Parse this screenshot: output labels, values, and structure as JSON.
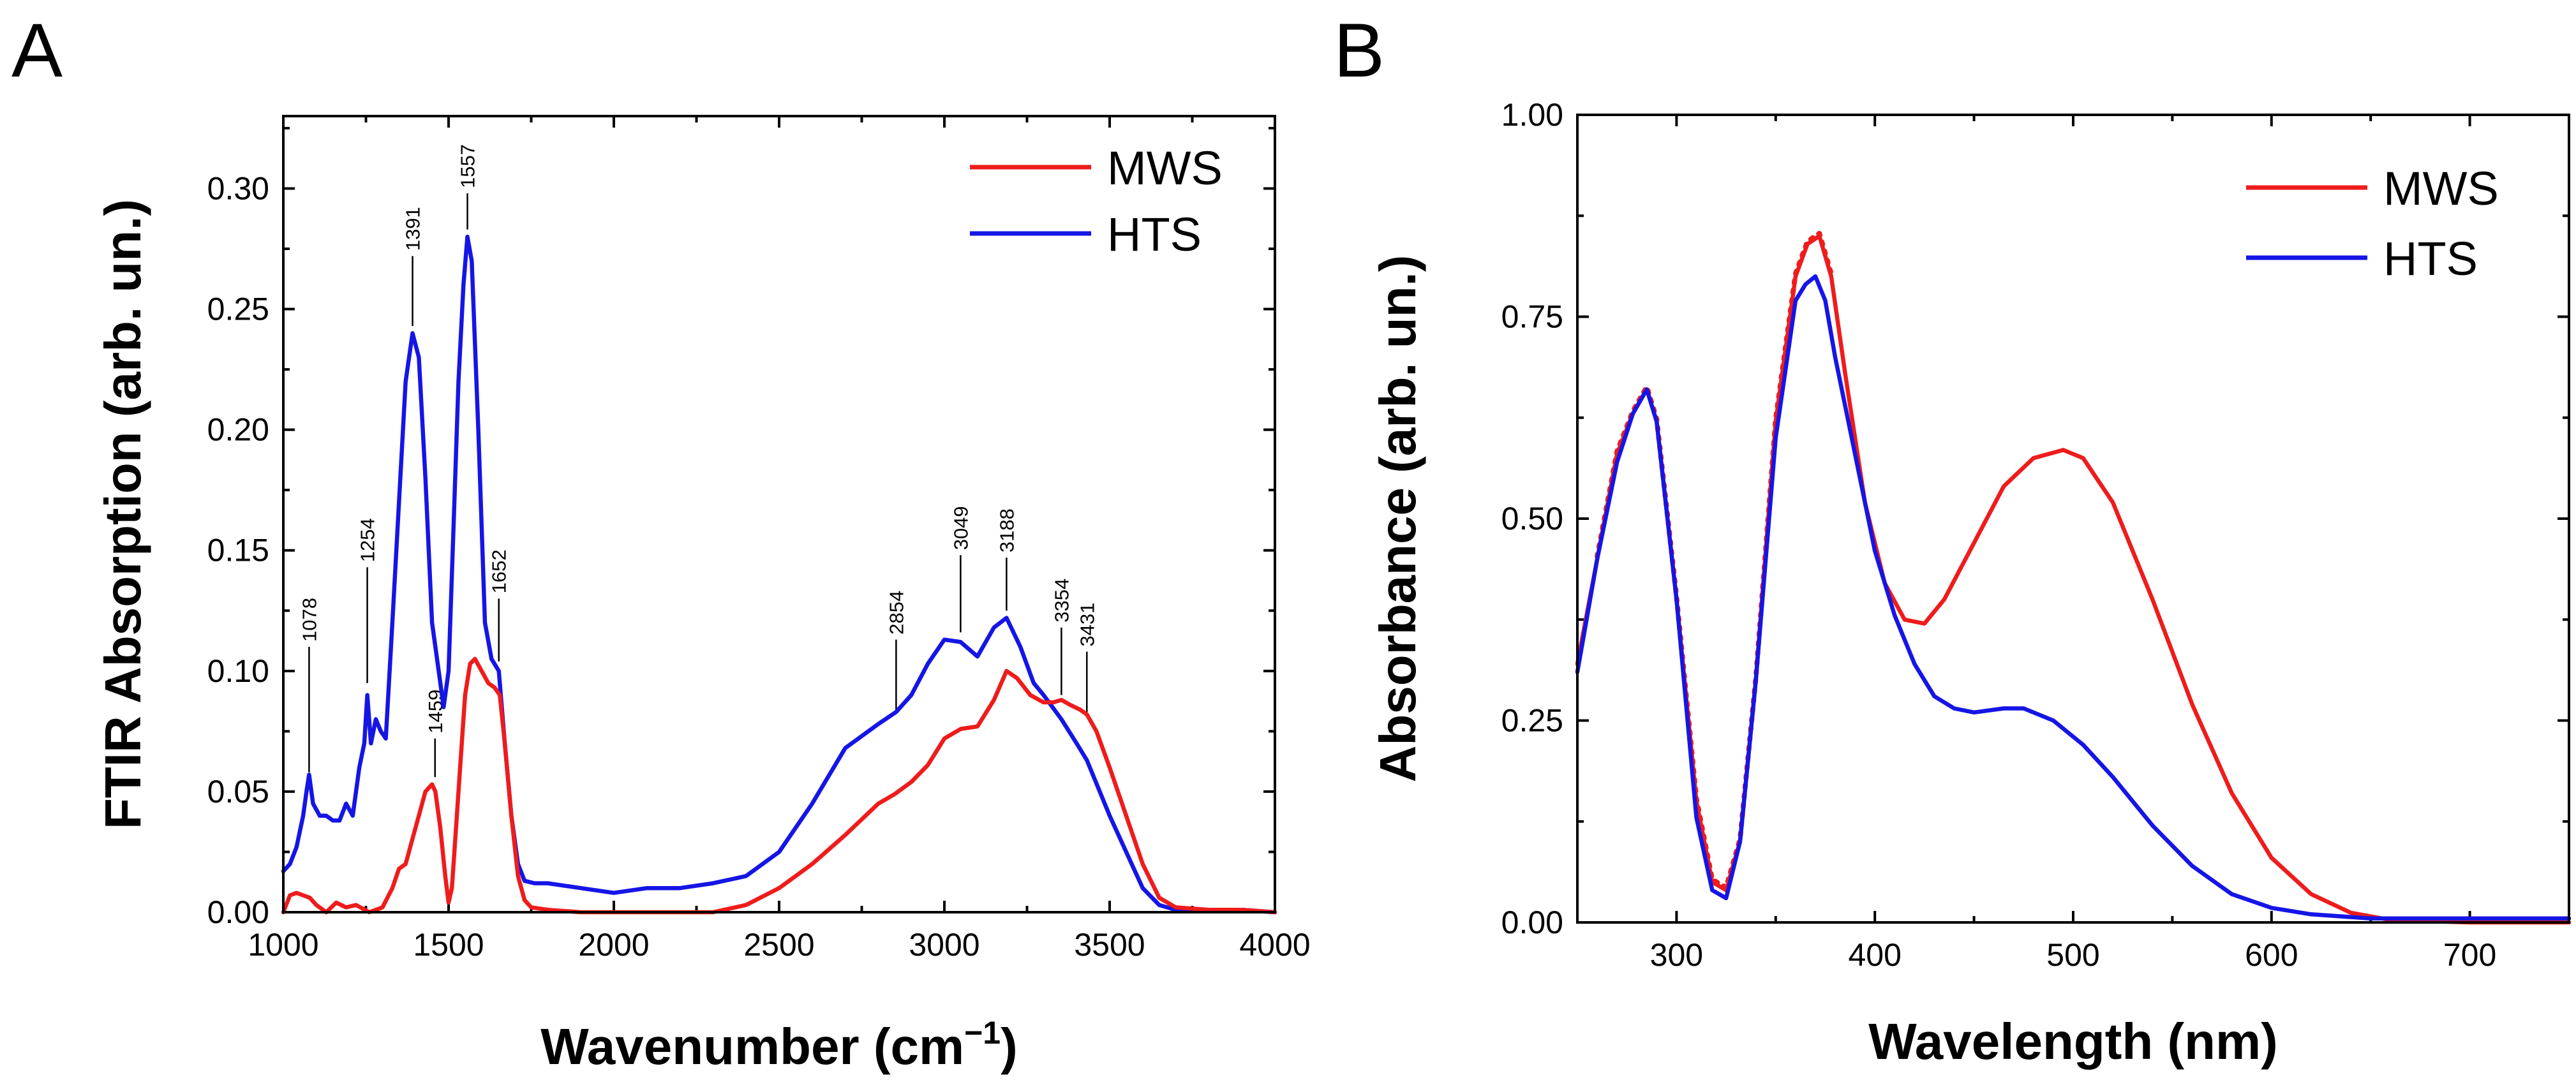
{
  "colors": {
    "MWS": "#ee1c1c",
    "HTS": "#1515e6"
  },
  "chart_data": [
    {
      "panel": "A",
      "type": "line",
      "xlabel": "Wavenumber (cm",
      "xlabel_sup": "−1",
      "xlabel_close": ")",
      "ylabel": "FTIR Absorption (arb. un.)",
      "xlim": [
        1000,
        4000
      ],
      "ylim": [
        0,
        0.33
      ],
      "xticks": [
        1000,
        1500,
        2000,
        2500,
        3000,
        3500,
        4000
      ],
      "xtick_labels": [
        "1000",
        "1500",
        "2000",
        "2500",
        "3000",
        "3500",
        "4000"
      ],
      "yticks": [
        0,
        0.05,
        0.1,
        0.15,
        0.2,
        0.25,
        0.3
      ],
      "ytick_labels": [
        "0.00",
        "0.05",
        "0.10",
        "0.15",
        "0.20",
        "0.25",
        "0.30"
      ],
      "legend_position": "top-right",
      "legend": [
        "MWS",
        "HTS"
      ],
      "series": [
        {
          "name": "MWS",
          "x": [
            1000,
            1020,
            1040,
            1060,
            1080,
            1100,
            1130,
            1160,
            1190,
            1220,
            1260,
            1300,
            1330,
            1350,
            1370,
            1390,
            1410,
            1430,
            1450,
            1460,
            1475,
            1490,
            1500,
            1510,
            1520,
            1535,
            1550,
            1565,
            1580,
            1600,
            1620,
            1640,
            1655,
            1670,
            1690,
            1710,
            1730,
            1750,
            1800,
            1900,
            2000,
            2100,
            2200,
            2300,
            2400,
            2500,
            2600,
            2700,
            2800,
            2850,
            2900,
            2950,
            3000,
            3050,
            3100,
            3150,
            3188,
            3220,
            3260,
            3300,
            3330,
            3354,
            3380,
            3410,
            3431,
            3460,
            3500,
            3550,
            3600,
            3650,
            3700,
            3800,
            3900,
            4000
          ],
          "values": [
            0.0,
            0.007,
            0.008,
            0.007,
            0.006,
            0.003,
            0.0,
            0.004,
            0.002,
            0.003,
            0.0,
            0.002,
            0.01,
            0.018,
            0.02,
            0.03,
            0.04,
            0.05,
            0.053,
            0.05,
            0.035,
            0.015,
            0.004,
            0.01,
            0.03,
            0.06,
            0.09,
            0.103,
            0.105,
            0.1,
            0.095,
            0.093,
            0.09,
            0.07,
            0.04,
            0.015,
            0.005,
            0.002,
            0.001,
            0.0,
            0.0,
            0.0,
            0.0,
            0.0,
            0.003,
            0.01,
            0.02,
            0.032,
            0.045,
            0.049,
            0.054,
            0.061,
            0.072,
            0.076,
            0.077,
            0.088,
            0.1,
            0.097,
            0.09,
            0.087,
            0.087,
            0.088,
            0.086,
            0.084,
            0.082,
            0.075,
            0.06,
            0.04,
            0.02,
            0.006,
            0.002,
            0.001,
            0.001,
            0.0
          ]
        },
        {
          "name": "HTS",
          "x": [
            1000,
            1020,
            1040,
            1060,
            1070,
            1078,
            1090,
            1110,
            1130,
            1150,
            1170,
            1190,
            1210,
            1230,
            1245,
            1254,
            1265,
            1280,
            1295,
            1310,
            1330,
            1350,
            1370,
            1391,
            1410,
            1430,
            1450,
            1470,
            1485,
            1500,
            1515,
            1530,
            1545,
            1557,
            1570,
            1590,
            1610,
            1630,
            1652,
            1670,
            1690,
            1710,
            1730,
            1760,
            1800,
            1900,
            2000,
            2100,
            2200,
            2300,
            2400,
            2500,
            2600,
            2700,
            2800,
            2854,
            2900,
            2950,
            3000,
            3049,
            3100,
            3150,
            3188,
            3230,
            3270,
            3300,
            3354,
            3400,
            3431,
            3470,
            3500,
            3550,
            3600,
            3650,
            3700,
            3800,
            3900,
            4000
          ],
          "values": [
            0.017,
            0.02,
            0.027,
            0.04,
            0.05,
            0.057,
            0.045,
            0.04,
            0.04,
            0.038,
            0.038,
            0.045,
            0.04,
            0.06,
            0.07,
            0.09,
            0.07,
            0.08,
            0.075,
            0.072,
            0.12,
            0.17,
            0.22,
            0.24,
            0.23,
            0.18,
            0.12,
            0.1,
            0.085,
            0.1,
            0.16,
            0.22,
            0.26,
            0.28,
            0.27,
            0.2,
            0.12,
            0.105,
            0.1,
            0.07,
            0.04,
            0.02,
            0.013,
            0.012,
            0.012,
            0.01,
            0.008,
            0.01,
            0.01,
            0.012,
            0.015,
            0.025,
            0.045,
            0.068,
            0.078,
            0.083,
            0.09,
            0.103,
            0.113,
            0.112,
            0.106,
            0.118,
            0.122,
            0.11,
            0.095,
            0.09,
            0.08,
            0.07,
            0.063,
            0.05,
            0.04,
            0.025,
            0.01,
            0.003,
            0.001,
            0.001,
            0.001,
            0.0
          ]
        }
      ],
      "annotations": [
        {
          "label": "1078",
          "x": 1078,
          "y_tip": 0.058,
          "y_top": 0.11
        },
        {
          "label": "1254",
          "x": 1254,
          "y_tip": 0.095,
          "y_top": 0.143
        },
        {
          "label": "1391",
          "x": 1391,
          "y_tip": 0.243,
          "y_top": 0.272
        },
        {
          "label": "1459",
          "x": 1459,
          "y_tip": 0.056,
          "y_top": 0.072
        },
        {
          "label": "1557",
          "x": 1557,
          "y_tip": 0.283,
          "y_top": 0.298
        },
        {
          "label": "1652",
          "x": 1652,
          "y_tip": 0.104,
          "y_top": 0.13
        },
        {
          "label": "2854",
          "x": 2854,
          "y_tip": 0.083,
          "y_top": 0.113
        },
        {
          "label": "3049",
          "x": 3049,
          "y_tip": 0.116,
          "y_top": 0.148
        },
        {
          "label": "3188",
          "x": 3188,
          "y_tip": 0.125,
          "y_top": 0.147
        },
        {
          "label": "3354",
          "x": 3354,
          "y_tip": 0.09,
          "y_top": 0.118
        },
        {
          "label": "3431",
          "x": 3431,
          "y_tip": 0.082,
          "y_top": 0.108
        }
      ]
    },
    {
      "panel": "B",
      "type": "line",
      "xlabel": "Wavelength (nm)",
      "ylabel": "Absorbance (arb. un.)",
      "xlim": [
        250,
        750
      ],
      "ylim": [
        0,
        1.0
      ],
      "xticks": [
        300,
        400,
        500,
        600,
        700
      ],
      "xtick_labels": [
        "300",
        "400",
        "500",
        "600",
        "700"
      ],
      "yticks": [
        0,
        0.25,
        0.5,
        0.75,
        1.0
      ],
      "ytick_labels": [
        "0.00",
        "0.25",
        "0.50",
        "0.75",
        "1.00"
      ],
      "legend_position": "top-right",
      "legend": [
        "MWS",
        "HTS"
      ],
      "series": [
        {
          "name": "MWS",
          "x": [
            250,
            260,
            270,
            278,
            285,
            290,
            300,
            310,
            318,
            325,
            332,
            340,
            350,
            360,
            366,
            372,
            378,
            385,
            395,
            405,
            415,
            425,
            435,
            450,
            465,
            480,
            495,
            505,
            520,
            540,
            560,
            580,
            600,
            620,
            640,
            660,
            700,
            750
          ],
          "values": [
            0.32,
            0.45,
            0.58,
            0.63,
            0.66,
            0.62,
            0.4,
            0.15,
            0.05,
            0.04,
            0.1,
            0.3,
            0.62,
            0.8,
            0.84,
            0.85,
            0.8,
            0.68,
            0.52,
            0.42,
            0.375,
            0.37,
            0.4,
            0.47,
            0.54,
            0.575,
            0.585,
            0.575,
            0.52,
            0.4,
            0.27,
            0.16,
            0.08,
            0.035,
            0.012,
            0.003,
            0.0,
            0.0
          ]
        },
        {
          "name": "HTS",
          "x": [
            250,
            260,
            270,
            278,
            285,
            290,
            300,
            310,
            318,
            325,
            332,
            340,
            350,
            360,
            365,
            370,
            375,
            380,
            390,
            400,
            410,
            420,
            430,
            440,
            450,
            465,
            475,
            490,
            505,
            520,
            540,
            560,
            580,
            600,
            620,
            650,
            700,
            750
          ],
          "values": [
            0.31,
            0.45,
            0.57,
            0.63,
            0.66,
            0.62,
            0.4,
            0.13,
            0.04,
            0.03,
            0.1,
            0.3,
            0.6,
            0.77,
            0.79,
            0.8,
            0.77,
            0.7,
            0.58,
            0.46,
            0.38,
            0.32,
            0.28,
            0.265,
            0.26,
            0.265,
            0.265,
            0.25,
            0.22,
            0.18,
            0.12,
            0.07,
            0.035,
            0.018,
            0.01,
            0.005,
            0.005,
            0.005
          ]
        }
      ]
    }
  ]
}
